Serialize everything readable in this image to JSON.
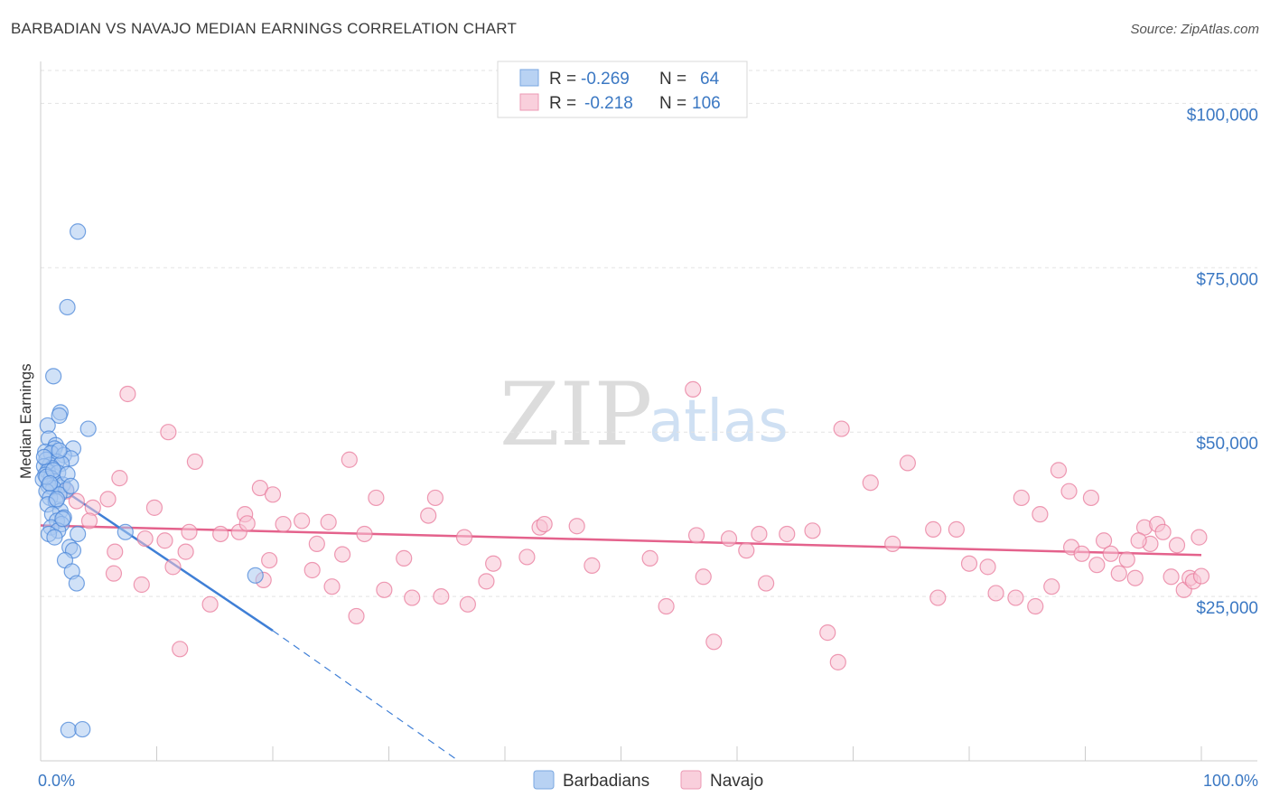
{
  "header": {
    "title": "BARBADIAN VS NAVAJO MEDIAN EARNINGS CORRELATION CHART",
    "source": "Source: ZipAtlas.com"
  },
  "watermark": {
    "zip": "ZIP",
    "atlas": "atlas"
  },
  "legend_box": {
    "rows": [
      {
        "r_label": "R =",
        "r_value": "-0.269",
        "n_label": "N =",
        "n_value": "64",
        "color": "#8fb6ea"
      },
      {
        "r_label": "R =",
        "r_value": "-0.218",
        "n_label": "N =",
        "n_value": "106",
        "color": "#f4b6c8"
      }
    ]
  },
  "bottom_legend": [
    {
      "label": "Barbadians",
      "color": "#8fb6ea"
    },
    {
      "label": "Navajo",
      "color": "#f4b6c8"
    }
  ],
  "chart_data": {
    "type": "scatter",
    "title": "BARBADIAN VS NAVAJO MEDIAN EARNINGS CORRELATION CHART",
    "xlabel": "",
    "ylabel": "Median Earnings",
    "xlim": [
      0,
      100
    ],
    "ylim": [
      0,
      105000
    ],
    "x_tick_labels": [
      "0.0%",
      "100.0%"
    ],
    "y_ticks": [
      25000,
      50000,
      75000,
      100000
    ],
    "y_tick_labels": [
      "$25,000",
      "$50,000",
      "$75,000",
      "$100,000"
    ],
    "grid": true,
    "colors": {
      "barbadians": "#4a86d8",
      "navajo": "#e8799b",
      "barbadians_fill": "#a9c8f0",
      "navajo_fill": "#f7c3d3"
    },
    "series": [
      {
        "name": "Barbadians",
        "trend": {
          "x": [
            0.0,
            20.0
          ],
          "y": [
            43500,
            19800
          ],
          "dashed_to": [
            36.0,
            0
          ]
        },
        "points": [
          [
            3.2,
            80500
          ],
          [
            2.3,
            69000
          ],
          [
            1.1,
            58500
          ],
          [
            1.7,
            53000
          ],
          [
            1.6,
            52500
          ],
          [
            4.1,
            50500
          ],
          [
            0.6,
            51000
          ],
          [
            0.7,
            49000
          ],
          [
            1.3,
            48000
          ],
          [
            1.2,
            47500
          ],
          [
            2.8,
            47500
          ],
          [
            0.4,
            47000
          ],
          [
            0.9,
            46800
          ],
          [
            2.0,
            46500
          ],
          [
            2.6,
            46000
          ],
          [
            0.5,
            45800
          ],
          [
            1.4,
            45500
          ],
          [
            0.8,
            45000
          ],
          [
            1.8,
            45200
          ],
          [
            0.3,
            44800
          ],
          [
            1.0,
            44500
          ],
          [
            0.6,
            44000
          ],
          [
            1.5,
            43800
          ],
          [
            0.4,
            43500
          ],
          [
            0.9,
            43000
          ],
          [
            0.2,
            42800
          ],
          [
            1.2,
            42500
          ],
          [
            1.9,
            42000
          ],
          [
            0.7,
            41800
          ],
          [
            1.1,
            41500
          ],
          [
            2.2,
            41200
          ],
          [
            0.5,
            41000
          ],
          [
            1.6,
            40500
          ],
          [
            0.8,
            40000
          ],
          [
            1.3,
            39500
          ],
          [
            0.6,
            39000
          ],
          [
            1.7,
            38000
          ],
          [
            1.0,
            37500
          ],
          [
            2.0,
            37000
          ],
          [
            1.4,
            36500
          ],
          [
            1.8,
            36000
          ],
          [
            0.9,
            35500
          ],
          [
            1.5,
            35000
          ],
          [
            7.3,
            34800
          ],
          [
            0.7,
            34500
          ],
          [
            3.2,
            34500
          ],
          [
            1.2,
            34000
          ],
          [
            2.5,
            32500
          ],
          [
            2.8,
            32000
          ],
          [
            2.1,
            30500
          ],
          [
            2.7,
            28800
          ],
          [
            3.1,
            27000
          ],
          [
            18.5,
            28200
          ],
          [
            2.4,
            4700
          ],
          [
            3.6,
            4800
          ],
          [
            0.5,
            43200
          ],
          [
            1.1,
            44200
          ],
          [
            0.3,
            46200
          ],
          [
            2.3,
            43600
          ],
          [
            1.6,
            47200
          ],
          [
            0.8,
            42200
          ],
          [
            1.4,
            39800
          ],
          [
            2.6,
            41800
          ],
          [
            1.9,
            36800
          ]
        ]
      },
      {
        "name": "Navajo",
        "trend": {
          "x": [
            0.0,
            100.0
          ],
          "y": [
            35800,
            31300
          ]
        },
        "points": [
          [
            7.5,
            55800
          ],
          [
            11.0,
            50000
          ],
          [
            13.3,
            45500
          ],
          [
            6.8,
            43000
          ],
          [
            9.8,
            38500
          ],
          [
            5.8,
            39800
          ],
          [
            4.5,
            38500
          ],
          [
            3.1,
            39500
          ],
          [
            2.2,
            41000
          ],
          [
            4.2,
            36500
          ],
          [
            6.4,
            31800
          ],
          [
            6.3,
            28500
          ],
          [
            9.0,
            33800
          ],
          [
            8.7,
            26800
          ],
          [
            10.7,
            33500
          ],
          [
            11.4,
            29500
          ],
          [
            12.5,
            31800
          ],
          [
            12.8,
            34800
          ],
          [
            14.6,
            23800
          ],
          [
            12.0,
            17000
          ],
          [
            15.5,
            34500
          ],
          [
            17.1,
            34800
          ],
          [
            17.6,
            37500
          ],
          [
            18.9,
            41500
          ],
          [
            19.2,
            27500
          ],
          [
            20.0,
            40500
          ],
          [
            19.7,
            30500
          ],
          [
            20.9,
            36000
          ],
          [
            22.5,
            36500
          ],
          [
            23.4,
            29000
          ],
          [
            23.8,
            33000
          ],
          [
            24.8,
            36300
          ],
          [
            25.1,
            26500
          ],
          [
            26.6,
            45800
          ],
          [
            27.2,
            22000
          ],
          [
            27.9,
            34500
          ],
          [
            28.9,
            40000
          ],
          [
            29.6,
            26000
          ],
          [
            31.3,
            30800
          ],
          [
            32.0,
            24800
          ],
          [
            34.0,
            40000
          ],
          [
            33.4,
            37300
          ],
          [
            34.5,
            25000
          ],
          [
            36.5,
            34000
          ],
          [
            36.8,
            23800
          ],
          [
            38.4,
            27300
          ],
          [
            39.0,
            30000
          ],
          [
            41.9,
            31000
          ],
          [
            43.0,
            35500
          ],
          [
            43.4,
            36000
          ],
          [
            47.5,
            29700
          ],
          [
            56.2,
            56500
          ],
          [
            56.5,
            34300
          ],
          [
            57.1,
            28000
          ],
          [
            59.3,
            33800
          ],
          [
            60.8,
            32000
          ],
          [
            61.9,
            34500
          ],
          [
            66.5,
            35000
          ],
          [
            67.8,
            19500
          ],
          [
            69.0,
            50500
          ],
          [
            68.7,
            15000
          ],
          [
            71.5,
            42300
          ],
          [
            73.4,
            33000
          ],
          [
            74.7,
            45300
          ],
          [
            77.3,
            24800
          ],
          [
            78.9,
            35200
          ],
          [
            80.0,
            30000
          ],
          [
            82.3,
            25500
          ],
          [
            84.0,
            24800
          ],
          [
            84.5,
            40000
          ],
          [
            85.7,
            23500
          ],
          [
            86.1,
            37500
          ],
          [
            87.1,
            26500
          ],
          [
            87.7,
            44200
          ],
          [
            88.8,
            32500
          ],
          [
            89.7,
            31500
          ],
          [
            90.5,
            40000
          ],
          [
            91.0,
            29800
          ],
          [
            91.6,
            33500
          ],
          [
            92.2,
            31500
          ],
          [
            92.9,
            28500
          ],
          [
            93.6,
            30600
          ],
          [
            94.3,
            27800
          ],
          [
            95.1,
            35500
          ],
          [
            95.6,
            33000
          ],
          [
            96.2,
            36000
          ],
          [
            96.7,
            34800
          ],
          [
            97.4,
            28000
          ],
          [
            97.9,
            32800
          ],
          [
            98.5,
            26000
          ],
          [
            99.0,
            27800
          ],
          [
            99.3,
            27300
          ],
          [
            99.8,
            34000
          ],
          [
            100.0,
            28100
          ],
          [
            62.5,
            27000
          ],
          [
            64.3,
            34500
          ],
          [
            52.5,
            30800
          ],
          [
            88.6,
            41000
          ],
          [
            76.9,
            35200
          ],
          [
            58.0,
            18100
          ],
          [
            46.2,
            35700
          ],
          [
            81.6,
            29500
          ],
          [
            26.0,
            31400
          ],
          [
            17.8,
            36100
          ],
          [
            53.9,
            23500
          ],
          [
            94.6,
            33500
          ]
        ]
      }
    ]
  }
}
